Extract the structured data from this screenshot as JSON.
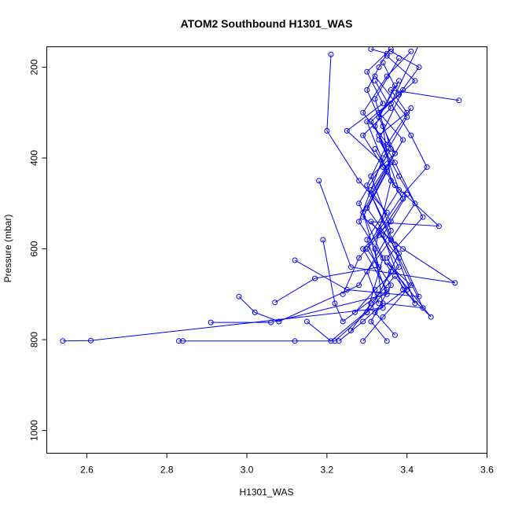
{
  "chart_data": {
    "type": "scatter",
    "title": "ATOM2 Southbound H1301_WAS",
    "xlabel": "H1301_WAS",
    "ylabel": "Pressure (mbar)",
    "xlim": [
      2.5,
      3.6
    ],
    "ylim": [
      1050,
      155
    ],
    "y_reversed": true,
    "x_ticks": [
      2.6,
      2.8,
      3.0,
      3.2,
      3.4,
      3.6
    ],
    "x_tick_labels": [
      "2.6",
      "2.8",
      "3.0",
      "3.2",
      "3.4",
      "3.6"
    ],
    "y_ticks": [
      200,
      400,
      600,
      800,
      1000
    ],
    "y_tick_labels": [
      "200",
      "400",
      "600",
      "800",
      "1000"
    ],
    "marker": "open-circle",
    "connect_points": true,
    "grid": false,
    "legend": "none",
    "series_color": "#0000ff",
    "series": [
      {
        "x": [
          2.54,
          2.61,
          3.34,
          3.32,
          3.36,
          3.34,
          3.3,
          3.33,
          3.35,
          3.31
        ],
        "y": [
          803,
          802,
          730,
          600,
          450,
          330,
          250,
          200,
          170,
          160
        ]
      },
      {
        "x": [
          2.83,
          2.84,
          3.12,
          3.22,
          3.3,
          3.34,
          3.28,
          3.36,
          3.32,
          3.38
        ],
        "y": [
          803,
          803,
          803,
          803,
          740,
          620,
          500,
          380,
          270,
          180
        ]
      },
      {
        "x": [
          2.91,
          3.06,
          3.35,
          3.3,
          3.38,
          3.33,
          3.4,
          3.36,
          3.53
        ],
        "y": [
          762,
          762,
          700,
          580,
          470,
          350,
          300,
          250,
          273
        ]
      },
      {
        "x": [
          2.98,
          3.02,
          3.08,
          3.28,
          3.36,
          3.31,
          3.37,
          3.29,
          3.35,
          3.41
        ],
        "y": [
          705,
          740,
          760,
          680,
          560,
          440,
          390,
          300,
          220,
          165
        ]
      },
      {
        "x": [
          3.07,
          3.17,
          3.33,
          3.29,
          3.35,
          3.25,
          3.34,
          3.3,
          3.36
        ],
        "y": [
          718,
          665,
          640,
          520,
          420,
          340,
          280,
          210,
          160
        ]
      },
      {
        "x": [
          3.12,
          3.25,
          3.43,
          3.37,
          3.31,
          3.39,
          3.33,
          3.42,
          3.35
        ],
        "y": [
          625,
          690,
          705,
          590,
          480,
          360,
          300,
          230,
          175
        ]
      },
      {
        "x": [
          3.18,
          3.26,
          3.52,
          3.39,
          3.29,
          3.35,
          3.3,
          3.38,
          3.34
        ],
        "y": [
          450,
          640,
          675,
          600,
          530,
          430,
          320,
          260,
          190
        ]
      },
      {
        "x": [
          3.15,
          3.21,
          3.31,
          3.36,
          3.28,
          3.34,
          3.4,
          3.32
        ],
        "y": [
          760,
          803,
          730,
          650,
          540,
          400,
          310,
          220
        ]
      },
      {
        "x": [
          3.19,
          3.22,
          3.24,
          3.33,
          3.38,
          3.3,
          3.36,
          3.32,
          3.37
        ],
        "y": [
          580,
          720,
          760,
          700,
          610,
          510,
          410,
          330,
          240
        ]
      },
      {
        "x": [
          3.21,
          3.2,
          3.28,
          3.35,
          3.3,
          3.36,
          3.31,
          3.35
        ],
        "y": [
          172,
          340,
          450,
          520,
          600,
          680,
          760,
          803
        ]
      },
      {
        "x": [
          3.23,
          3.29,
          3.34,
          3.44,
          3.38,
          3.31,
          3.48,
          3.37,
          3.32
        ],
        "y": [
          803,
          760,
          720,
          730,
          620,
          540,
          550,
          460,
          380
        ]
      },
      {
        "x": [
          3.27,
          3.32,
          3.38,
          3.33,
          3.39,
          3.45,
          3.41,
          3.36,
          3.43
        ],
        "y": [
          740,
          690,
          640,
          560,
          480,
          420,
          350,
          280,
          150
        ]
      },
      {
        "x": [
          3.26,
          3.31,
          3.37,
          3.42,
          3.36,
          3.3,
          3.35,
          3.41
        ],
        "y": [
          780,
          720,
          660,
          720,
          580,
          460,
          370,
          290
        ]
      },
      {
        "x": [
          3.29,
          3.34,
          3.4,
          3.35,
          3.44,
          3.38,
          3.33,
          3.39
        ],
        "y": [
          803,
          750,
          690,
          620,
          530,
          440,
          360,
          250
        ]
      },
      {
        "x": [
          3.33,
          3.3,
          3.36,
          3.42,
          3.37,
          3.31,
          3.38,
          3.43,
          3.36
        ],
        "y": [
          720,
          650,
          580,
          500,
          410,
          320,
          260,
          200,
          165
        ]
      },
      {
        "x": [
          3.24,
          3.28,
          3.33,
          3.39,
          3.34,
          3.29,
          3.36,
          3.32
        ],
        "y": [
          700,
          620,
          570,
          490,
          420,
          350,
          290,
          230
        ]
      },
      {
        "x": [
          3.37,
          3.32,
          3.41,
          3.35,
          3.46,
          3.39,
          3.34,
          3.4
        ],
        "y": [
          790,
          740,
          680,
          630,
          750,
          690,
          570,
          480
        ]
      },
      {
        "x": [
          3.3,
          3.35,
          3.29,
          3.36,
          3.31,
          3.37,
          3.33,
          3.38
        ],
        "y": [
          740,
          690,
          600,
          540,
          470,
          390,
          310,
          230
        ]
      }
    ]
  }
}
